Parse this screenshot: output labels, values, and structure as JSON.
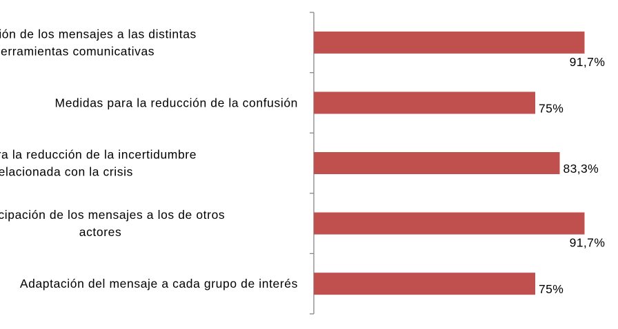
{
  "chart_data": {
    "type": "bar",
    "orientation": "horizontal",
    "categories": [
      [
        "Adaptación de los mensajes a las distintas",
        "herramientas comunicativas"
      ],
      [
        "Medidas para la reducción de la confusión"
      ],
      [
        "Medidas para la reducción de la incertidumbre",
        "relacionada con la crisis"
      ],
      [
        "Anticipación de los mensajes a los de otros",
        "actores"
      ],
      [
        "Adaptación del mensaje a cada grupo de interés"
      ]
    ],
    "values": [
      91.7,
      75,
      83.3,
      91.7,
      75
    ],
    "data_labels": [
      "91,7%",
      "75%",
      "83,3%",
      "91,7%",
      "75%"
    ],
    "xlim": [
      0,
      100
    ],
    "grid": false,
    "legend": "none",
    "colors": {
      "bar": "#C0504D",
      "axis": "#868686",
      "text": "#000000"
    }
  }
}
